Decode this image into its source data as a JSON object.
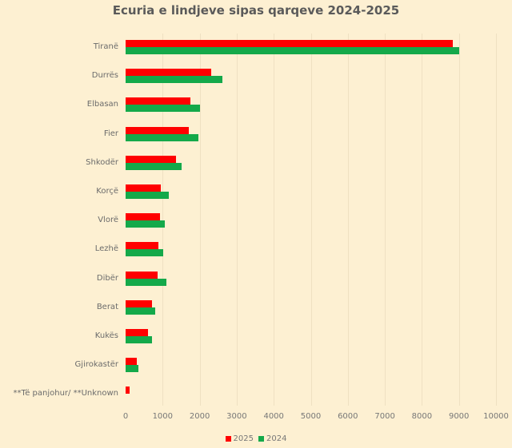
{
  "chart_data": {
    "type": "bar",
    "orientation": "horizontal",
    "title": "Ecuria e lindjeve sipas qarqeve 2024-2025",
    "xlabel": "",
    "ylabel": "",
    "xlim": [
      0,
      10000
    ],
    "xticks": [
      "0",
      "1000",
      "2000",
      "3000",
      "4000",
      "5000",
      "6000",
      "7000",
      "8000",
      "9000",
      "10000"
    ],
    "grid": true,
    "legend_position": "bottom",
    "categories": [
      "Tiranë",
      "Durrës",
      "Elbasan",
      "Fier",
      "Shkodër",
      "Korçë",
      "Vlorë",
      "Lezhë",
      "Dibër",
      "Berat",
      "Kukës",
      "Gjirokastër",
      "**Të panjohur/ **Unknown"
    ],
    "series": [
      {
        "name": "2025",
        "color": "#ff0000",
        "values": [
          8840,
          2310,
          1750,
          1710,
          1360,
          950,
          930,
          890,
          860,
          710,
          610,
          300,
          110
        ]
      },
      {
        "name": "2024",
        "color": "#14a94a",
        "values": [
          9000,
          2610,
          2010,
          1970,
          1510,
          1170,
          1060,
          1020,
          1100,
          800,
          710,
          340,
          0
        ]
      }
    ]
  }
}
